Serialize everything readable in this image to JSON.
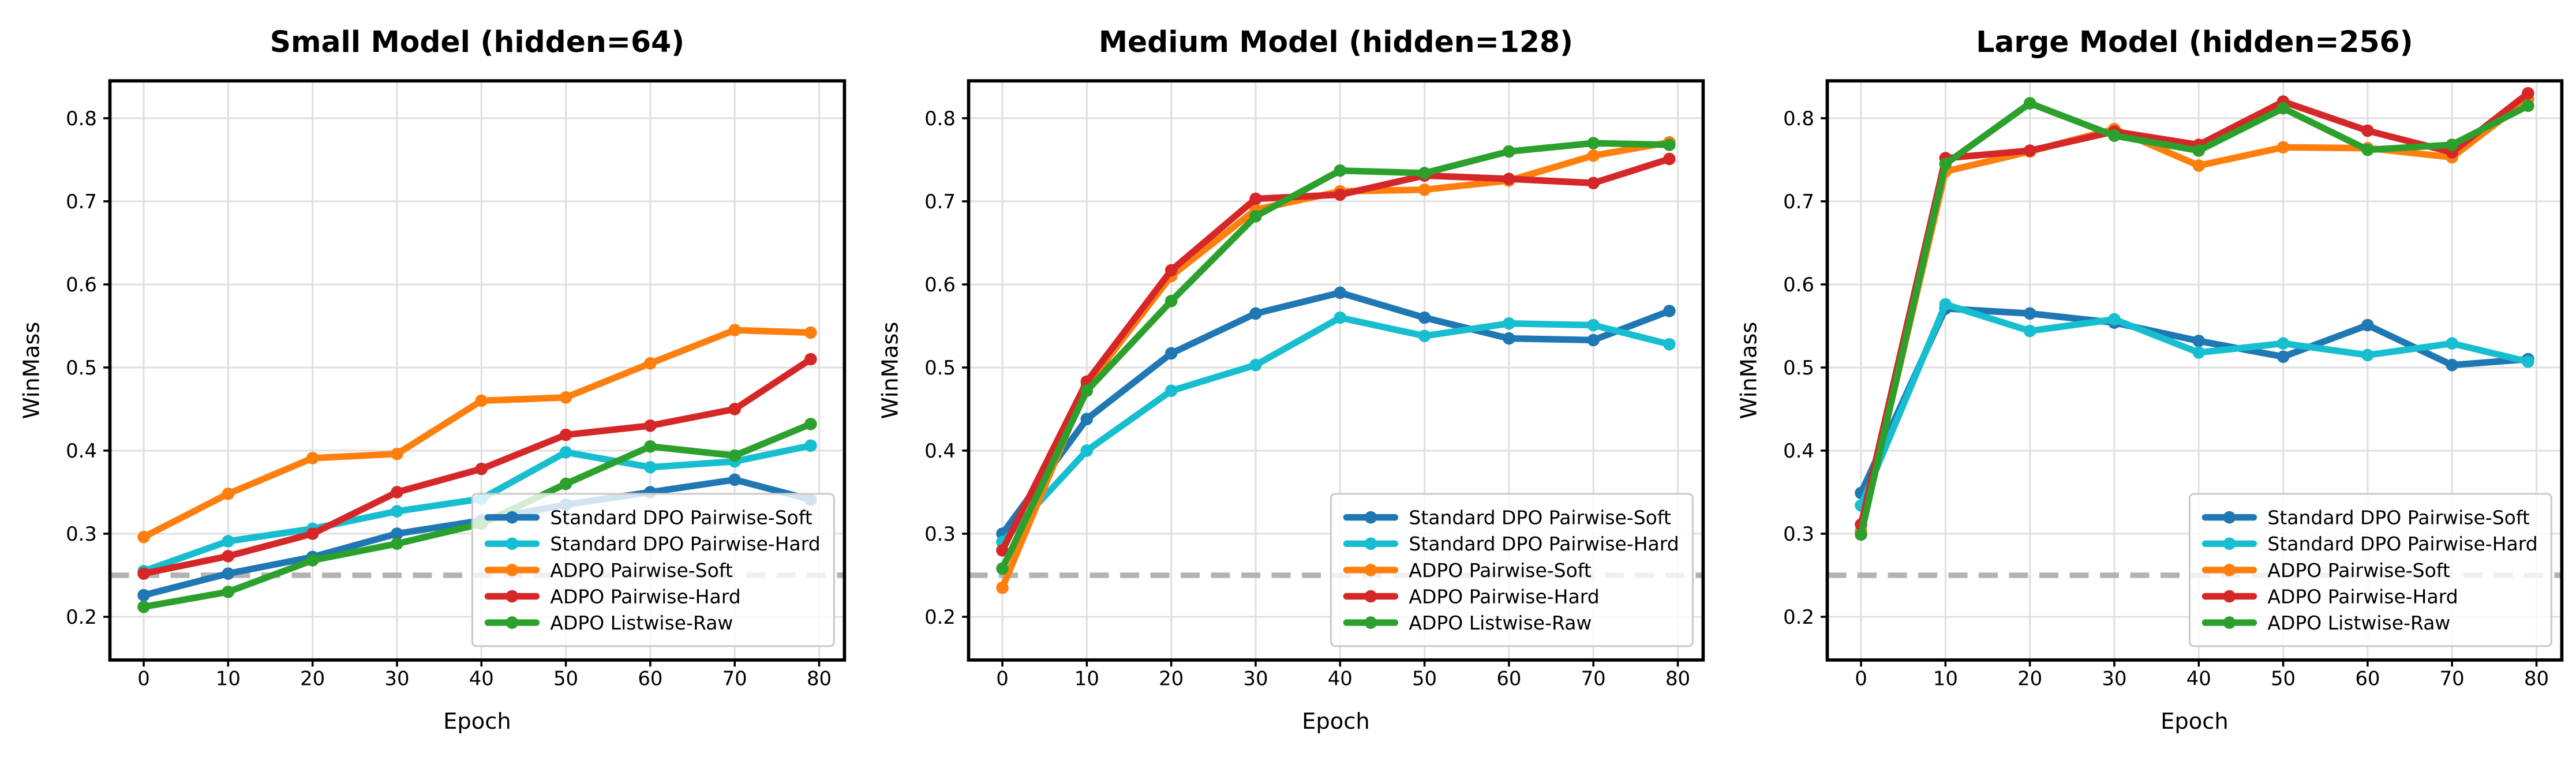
{
  "figure": {
    "background": "#ffffff",
    "ylabel": "WinMass",
    "xlabel": "Epoch",
    "baseline_value": 0.25,
    "baseline_color": "#b3b3b3",
    "grid_color": "#dfdfdf",
    "spine_color": "#000000",
    "text_color": "#000000",
    "legend_border_color": "#c9c9c9",
    "legend_background": "rgba(255,255,255,0.8)"
  },
  "chart_data": [
    {
      "type": "line",
      "title": "Small Model (hidden=64)",
      "xlabel": "Epoch",
      "ylabel": "WinMass",
      "x": [
        0,
        10,
        20,
        30,
        40,
        50,
        60,
        70,
        79
      ],
      "xticks": [
        0,
        10,
        20,
        30,
        40,
        50,
        60,
        70,
        80
      ],
      "yticks": [
        0.2,
        0.3,
        0.4,
        0.5,
        0.6,
        0.7,
        0.8
      ],
      "xlim": [
        -4,
        83
      ],
      "ylim": [
        0.148,
        0.845
      ],
      "grid": true,
      "legend_position": "lower-right",
      "baseline": 0.25,
      "series": [
        {
          "name": "Standard DPO Pairwise-Soft",
          "color": "#1f77b4",
          "values": [
            0.226,
            0.252,
            0.272,
            0.3,
            0.316,
            0.335,
            0.35,
            0.365,
            0.341
          ]
        },
        {
          "name": "Standard DPO Pairwise-Hard",
          "color": "#17becf",
          "values": [
            0.255,
            0.291,
            0.306,
            0.327,
            0.342,
            0.398,
            0.38,
            0.387,
            0.406
          ]
        },
        {
          "name": "ADPO Pairwise-Soft",
          "color": "#ff7f0e",
          "values": [
            0.296,
            0.348,
            0.391,
            0.396,
            0.46,
            0.464,
            0.505,
            0.545,
            0.542
          ]
        },
        {
          "name": "ADPO Pairwise-Hard",
          "color": "#d62728",
          "values": [
            0.252,
            0.273,
            0.3,
            0.35,
            0.378,
            0.419,
            0.43,
            0.45,
            0.51
          ]
        },
        {
          "name": "ADPO Listwise-Raw",
          "color": "#2ca02c",
          "values": [
            0.212,
            0.23,
            0.268,
            0.288,
            0.312,
            0.36,
            0.405,
            0.394,
            0.432
          ]
        }
      ]
    },
    {
      "type": "line",
      "title": "Medium Model (hidden=128)",
      "xlabel": "Epoch",
      "ylabel": "WinMass",
      "x": [
        0,
        10,
        20,
        30,
        40,
        50,
        60,
        70,
        79
      ],
      "xticks": [
        0,
        10,
        20,
        30,
        40,
        50,
        60,
        70,
        80
      ],
      "yticks": [
        0.2,
        0.3,
        0.4,
        0.5,
        0.6,
        0.7,
        0.8
      ],
      "xlim": [
        -4,
        83
      ],
      "ylim": [
        0.148,
        0.845
      ],
      "grid": true,
      "legend_position": "lower-right",
      "baseline": 0.25,
      "series": [
        {
          "name": "Standard DPO Pairwise-Soft",
          "color": "#1f77b4",
          "values": [
            0.3,
            0.438,
            0.517,
            0.565,
            0.59,
            0.56,
            0.535,
            0.533,
            0.568
          ]
        },
        {
          "name": "Standard DPO Pairwise-Hard",
          "color": "#17becf",
          "values": [
            0.29,
            0.4,
            0.472,
            0.503,
            0.56,
            0.538,
            0.553,
            0.551,
            0.528
          ]
        },
        {
          "name": "ADPO Pairwise-Soft",
          "color": "#ff7f0e",
          "values": [
            0.235,
            0.478,
            0.61,
            0.69,
            0.712,
            0.714,
            0.725,
            0.755,
            0.771
          ]
        },
        {
          "name": "ADPO Pairwise-Hard",
          "color": "#d62728",
          "values": [
            0.28,
            0.483,
            0.617,
            0.703,
            0.708,
            0.731,
            0.727,
            0.722,
            0.751
          ]
        },
        {
          "name": "ADPO Listwise-Raw",
          "color": "#2ca02c",
          "values": [
            0.258,
            0.472,
            0.58,
            0.682,
            0.737,
            0.734,
            0.76,
            0.77,
            0.768
          ]
        }
      ]
    },
    {
      "type": "line",
      "title": "Large Model (hidden=256)",
      "xlabel": "Epoch",
      "ylabel": "WinMass",
      "x": [
        0,
        10,
        20,
        30,
        40,
        50,
        60,
        70,
        79
      ],
      "xticks": [
        0,
        10,
        20,
        30,
        40,
        50,
        60,
        70,
        80
      ],
      "yticks": [
        0.2,
        0.3,
        0.4,
        0.5,
        0.6,
        0.7,
        0.8
      ],
      "xlim": [
        -4,
        83
      ],
      "ylim": [
        0.148,
        0.845
      ],
      "grid": true,
      "legend_position": "lower-right",
      "baseline": 0.25,
      "series": [
        {
          "name": "Standard DPO Pairwise-Soft",
          "color": "#1f77b4",
          "values": [
            0.349,
            0.571,
            0.565,
            0.554,
            0.532,
            0.513,
            0.551,
            0.503,
            0.51
          ]
        },
        {
          "name": "Standard DPO Pairwise-Hard",
          "color": "#17becf",
          "values": [
            0.334,
            0.576,
            0.544,
            0.558,
            0.518,
            0.529,
            0.515,
            0.529,
            0.507
          ]
        },
        {
          "name": "ADPO Pairwise-Soft",
          "color": "#ff7f0e",
          "values": [
            0.303,
            0.736,
            0.76,
            0.787,
            0.743,
            0.765,
            0.764,
            0.753,
            0.823
          ]
        },
        {
          "name": "ADPO Pairwise-Hard",
          "color": "#d62728",
          "values": [
            0.311,
            0.752,
            0.761,
            0.784,
            0.768,
            0.82,
            0.785,
            0.759,
            0.83
          ]
        },
        {
          "name": "ADPO Listwise-Raw",
          "color": "#2ca02c",
          "values": [
            0.299,
            0.745,
            0.818,
            0.779,
            0.761,
            0.812,
            0.762,
            0.768,
            0.815
          ]
        }
      ]
    }
  ]
}
